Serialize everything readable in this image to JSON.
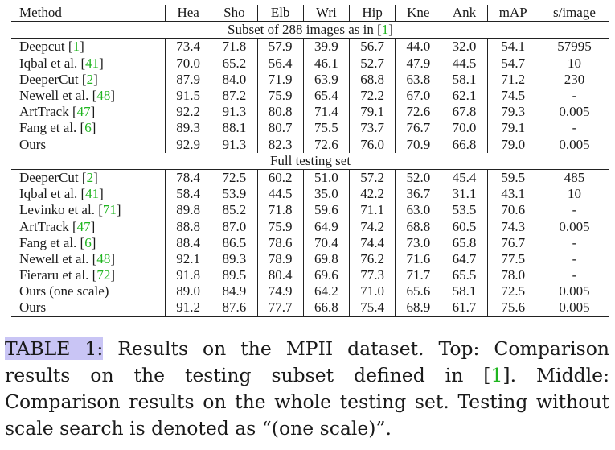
{
  "table": {
    "headers": [
      "Method",
      "Hea",
      "Sho",
      "Elb",
      "Wri",
      "Hip",
      "Kne",
      "Ank",
      "mAP",
      "s/image"
    ],
    "sections": [
      {
        "title": "Subset of 288 images as in ",
        "title_cite": "1",
        "rows": [
          {
            "name": "Deepcut ",
            "cite": "1",
            "cells": [
              "73.4",
              "71.8",
              "57.9",
              "39.9",
              "56.7",
              "44.0",
              "32.0",
              "54.1",
              "57995"
            ],
            "bold": []
          },
          {
            "name": "Iqbal et al. ",
            "cite": "41",
            "cells": [
              "70.0",
              "65.2",
              "56.4",
              "46.1",
              "52.7",
              "47.9",
              "44.5",
              "54.7",
              "10"
            ],
            "bold": []
          },
          {
            "name": "DeeperCut ",
            "cite": "2",
            "cells": [
              "87.9",
              "84.0",
              "71.9",
              "63.9",
              "68.8",
              "63.8",
              "58.1",
              "71.2",
              "230"
            ],
            "bold": []
          },
          {
            "name": "Newell et al. ",
            "cite": "48",
            "cells": [
              "91.5",
              "87.2",
              "75.9",
              "65.4",
              "72.2",
              "67.0",
              "62.1",
              "74.5",
              "-"
            ],
            "bold": []
          },
          {
            "name": "ArtTrack ",
            "cite": "47",
            "cells": [
              "92.2",
              "91.3",
              "80.8",
              "71.4",
              "79.1",
              "72.6",
              "67.8",
              "79.3",
              "0.005"
            ],
            "bold": [
              1,
              4,
              7,
              8
            ]
          },
          {
            "name": "Fang et al. ",
            "cite": "6",
            "cells": [
              "89.3",
              "88.1",
              "80.7",
              "75.5",
              "73.7",
              "76.7",
              "70.0",
              "79.1",
              "-"
            ],
            "bold": [
              5,
              6
            ]
          },
          {
            "name": "Ours",
            "cite": "",
            "cells": [
              "92.9",
              "91.3",
              "82.3",
              "72.6",
              "76.0",
              "70.9",
              "66.8",
              "79.0",
              "0.005"
            ],
            "bold": [
              0,
              1,
              2,
              8
            ]
          }
        ]
      },
      {
        "title": "Full testing set",
        "title_cite": "",
        "rows": [
          {
            "name": "DeeperCut ",
            "cite": "2",
            "cells": [
              "78.4",
              "72.5",
              "60.2",
              "51.0",
              "57.2",
              "52.0",
              "45.4",
              "59.5",
              "485"
            ],
            "bold": []
          },
          {
            "name": "Iqbal et al. ",
            "cite": "41",
            "cells": [
              "58.4",
              "53.9",
              "44.5",
              "35.0",
              "42.2",
              "36.7",
              "31.1",
              "43.1",
              "10"
            ],
            "bold": []
          },
          {
            "name": "Levinko et al. ",
            "cite": "71",
            "cells": [
              "89.8",
              "85.2",
              "71.8",
              "59.6",
              "71.1",
              "63.0",
              "53.5",
              "70.6",
              "-"
            ],
            "bold": []
          },
          {
            "name": "ArtTrack ",
            "cite": "47",
            "cells": [
              "88.8",
              "87.0",
              "75.9",
              "64.9",
              "74.2",
              "68.8",
              "60.5",
              "74.3",
              "0.005"
            ],
            "bold": [
              8
            ]
          },
          {
            "name": "Fang et al. ",
            "cite": "6",
            "cells": [
              "88.4",
              "86.5",
              "78.6",
              "70.4",
              "74.4",
              "73.0",
              "65.8",
              "76.7",
              "-"
            ],
            "bold": [
              3,
              5,
              6
            ]
          },
          {
            "name": "Newell et al. ",
            "cite": "48",
            "cells": [
              "92.1",
              "89.3",
              "78.9",
              "69.8",
              "76.2",
              "71.6",
              "64.7",
              "77.5",
              "-"
            ],
            "bold": [
              0
            ]
          },
          {
            "name": "Fieraru et al. ",
            "cite": "72",
            "cells": [
              "91.8",
              "89.5",
              "80.4",
              "69.6",
              "77.3",
              "71.7",
              "65.5",
              "78.0",
              "-"
            ],
            "bold": [
              1,
              2,
              4,
              7
            ]
          },
          {
            "name": "Ours (one scale)",
            "cite": "",
            "cells": [
              "89.0",
              "84.9",
              "74.9",
              "64.2",
              "71.0",
              "65.6",
              "58.1",
              "72.5",
              "0.005"
            ],
            "bold": []
          },
          {
            "name": "Ours",
            "cite": "",
            "cells": [
              "91.2",
              "87.6",
              "77.7",
              "66.8",
              "75.4",
              "68.9",
              "61.7",
              "75.6",
              "0.005"
            ],
            "bold": [
              8
            ]
          }
        ]
      }
    ]
  },
  "caption": {
    "label": "TABLE 1:",
    "text_1": " Results on the MPII dataset. Top: Comparison results on the testing subset defined in [",
    "cite": "1",
    "text_2": "]. Middle: Comparison results on the whole testing set. Testing without scale search is denoted as “(one scale)”."
  }
}
